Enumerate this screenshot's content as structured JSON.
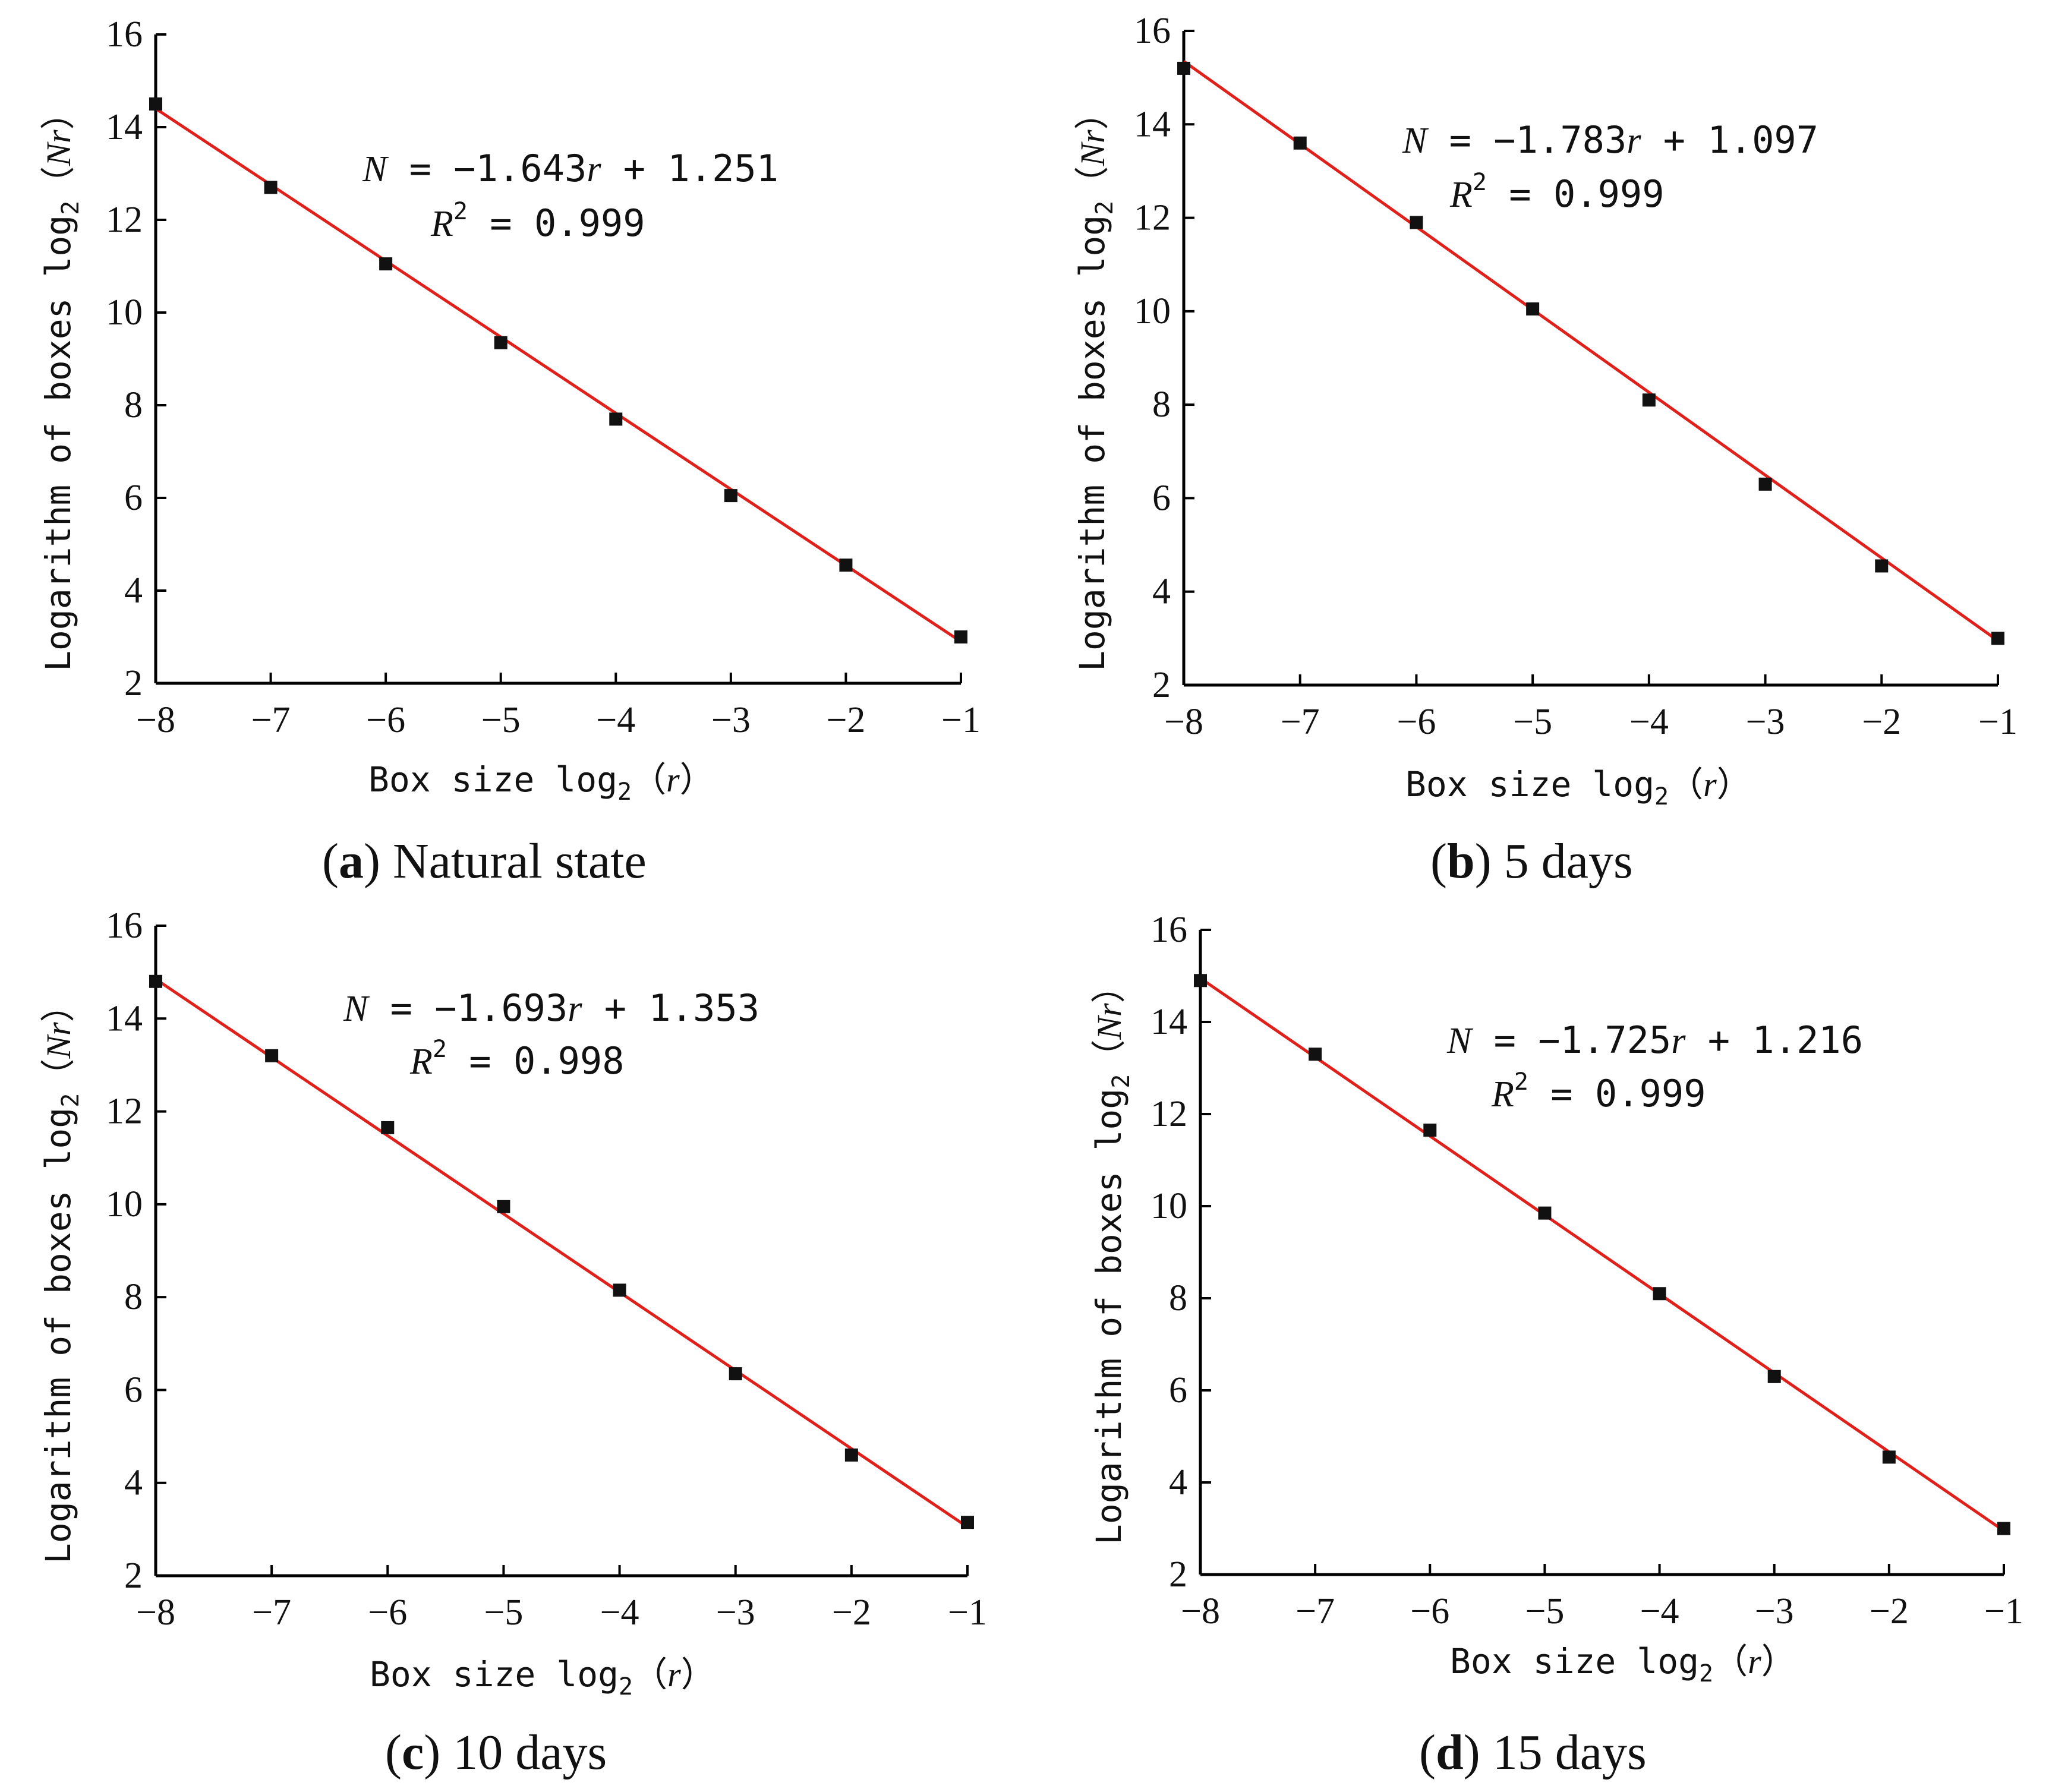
{
  "chart_data": [
    {
      "type": "scatter",
      "panel": "a",
      "caption_letter": "a",
      "caption_text": " Natural state",
      "xlabel": "Box size log",
      "xlabel_sub": "2",
      "xlabel_var": "r",
      "ylabel": "Logarithm of boxes log",
      "ylabel_sub": "2",
      "ylabel_var": "Nr",
      "xlim": [
        -8,
        -1
      ],
      "ylim": [
        2,
        16
      ],
      "x_ticks": [
        -8,
        -7,
        -6,
        -5,
        -4,
        -3,
        -2,
        -1
      ],
      "y_ticks": [
        2,
        4,
        6,
        8,
        10,
        12,
        14,
        16
      ],
      "x_tick_labels": [
        "−8",
        "−7",
        "−6",
        "−5",
        "−4",
        "−3",
        "−2",
        "−1"
      ],
      "y_tick_labels": [
        "2",
        "4",
        "6",
        "8",
        "10",
        "12",
        "14",
        "16"
      ],
      "x": [
        -8,
        -7,
        -6,
        -5,
        -4,
        -3,
        -2,
        -1
      ],
      "y": [
        14.5,
        12.7,
        11.05,
        9.35,
        7.7,
        6.05,
        4.55,
        3.0
      ],
      "fit": {
        "slope": -1.643,
        "intercept": 1.251,
        "x_range": [
          -8,
          -1
        ],
        "y_range": [
          14.4,
          2.9
        ],
        "color": "#e0201b"
      },
      "equation": {
        "lhs": "N",
        "rhs": " = −1.643",
        "var": "r",
        "const": " + 1.251",
        "r2_lhs": "R",
        "r2_sup": "2",
        "r2_rhs": " = 0.999"
      }
    },
    {
      "type": "scatter",
      "panel": "b",
      "caption_letter": "b",
      "caption_text": " 5 days",
      "xlabel": "Box size log",
      "xlabel_sub": "2",
      "xlabel_var": "r",
      "ylabel": "Logarithm of boxes log",
      "ylabel_sub": "2",
      "ylabel_var": "Nr",
      "xlim": [
        -8,
        -1
      ],
      "ylim": [
        2,
        16
      ],
      "x_ticks": [
        -8,
        -7,
        -6,
        -5,
        -4,
        -3,
        -2,
        -1
      ],
      "y_ticks": [
        2,
        4,
        6,
        8,
        10,
        12,
        14,
        16
      ],
      "x_tick_labels": [
        "−8",
        "−7",
        "−6",
        "−5",
        "−4",
        "−3",
        "−2",
        "−1"
      ],
      "y_tick_labels": [
        "2",
        "4",
        "6",
        "8",
        "10",
        "12",
        "14",
        "16"
      ],
      "x": [
        -8,
        -7,
        -6,
        -5,
        -4,
        -3,
        -2,
        -1
      ],
      "y": [
        15.2,
        13.6,
        11.9,
        10.05,
        8.1,
        6.3,
        4.55,
        3.0
      ],
      "fit": {
        "slope": -1.783,
        "intercept": 1.097,
        "x_range": [
          -8,
          -1
        ],
        "y_range": [
          15.35,
          2.95
        ],
        "color": "#e0201b"
      },
      "equation": {
        "lhs": "N",
        "rhs": " = −1.783",
        "var": "r",
        "const": " + 1.097",
        "r2_lhs": "R",
        "r2_sup": "2",
        "r2_rhs": " = 0.999"
      }
    },
    {
      "type": "scatter",
      "panel": "c",
      "caption_letter": "c",
      "caption_text": " 10 days",
      "xlabel": "Box size log",
      "xlabel_sub": "2",
      "xlabel_var": "r",
      "ylabel": "Logarithm of boxes log",
      "ylabel_sub": "2",
      "ylabel_var": "Nr",
      "xlim": [
        -8,
        -1
      ],
      "ylim": [
        2,
        16
      ],
      "x_ticks": [
        -8,
        -7,
        -6,
        -5,
        -4,
        -3,
        -2,
        -1
      ],
      "y_ticks": [
        2,
        4,
        6,
        8,
        10,
        12,
        14,
        16
      ],
      "x_tick_labels": [
        "−8",
        "−7",
        "−6",
        "−5",
        "−4",
        "−3",
        "−2",
        "−1"
      ],
      "y_tick_labels": [
        "2",
        "4",
        "6",
        "8",
        "10",
        "12",
        "14",
        "16"
      ],
      "x": [
        -8,
        -7,
        -6,
        -5,
        -4,
        -3,
        -2,
        -1
      ],
      "y": [
        14.8,
        13.2,
        11.65,
        9.95,
        8.15,
        6.35,
        4.6,
        3.15
      ],
      "fit": {
        "slope": -1.693,
        "intercept": 1.353,
        "x_range": [
          -8,
          -1
        ],
        "y_range": [
          14.85,
          3.05
        ],
        "color": "#e0201b"
      },
      "equation": {
        "lhs": "N",
        "rhs": " = −1.693",
        "var": "r",
        "const": " + 1.353",
        "r2_lhs": "R",
        "r2_sup": "2",
        "r2_rhs": " = 0.998"
      }
    },
    {
      "type": "scatter",
      "panel": "d",
      "caption_letter": "d",
      "caption_text": " 15 days",
      "xlabel": "Box size log",
      "xlabel_sub": "2",
      "xlabel_var": "r",
      "ylabel": "Logarithm of boxes log",
      "ylabel_sub": "2",
      "ylabel_var": "Nr",
      "xlim": [
        -8,
        -1
      ],
      "ylim": [
        2,
        16
      ],
      "x_ticks": [
        -8,
        -7,
        -6,
        -5,
        -4,
        -3,
        -2,
        -1
      ],
      "y_ticks": [
        2,
        4,
        6,
        8,
        10,
        12,
        14,
        16
      ],
      "x_tick_labels": [
        "−8",
        "−7",
        "−6",
        "−5",
        "−4",
        "−3",
        "−2",
        "−1"
      ],
      "y_tick_labels": [
        "2",
        "4",
        "6",
        "8",
        "10",
        "12",
        "14",
        "16"
      ],
      "x": [
        -8,
        -7,
        -6,
        -5,
        -4,
        -3,
        -2,
        -1
      ],
      "y": [
        14.9,
        13.3,
        11.65,
        9.85,
        8.1,
        6.3,
        4.55,
        3.0
      ],
      "fit": {
        "slope": -1.725,
        "intercept": 1.216,
        "x_range": [
          -8,
          -1
        ],
        "y_range": [
          14.95,
          2.95
        ],
        "color": "#e0201b"
      },
      "equation": {
        "lhs": "N",
        "rhs": " = −1.725",
        "var": "r",
        "const": " + 1.216",
        "r2_lhs": "R",
        "r2_sup": "2",
        "r2_rhs": " = 0.999"
      }
    }
  ]
}
